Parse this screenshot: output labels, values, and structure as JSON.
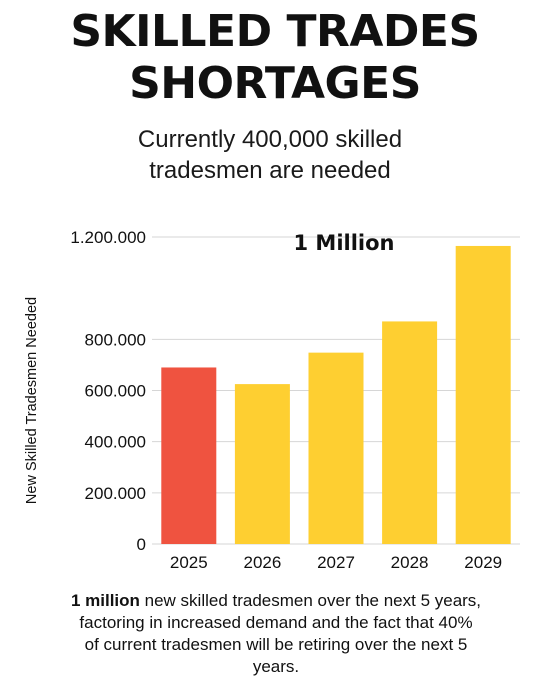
{
  "header": {
    "title_line1": "SKILLED TRADES",
    "title_line2": "SHORTAGES",
    "subtitle_line1": "Currently 400,000 skilled",
    "subtitle_line2": "tradesmen are needed"
  },
  "caption": {
    "bold": "1 million",
    "rest_line1": " new skilled tradesmen over the next 5 years,",
    "line2": "factoring in increased demand and the fact that 40%",
    "line3": "of current tradesmen will be retiring over the next 5",
    "line4": "years."
  },
  "chart_data": {
    "type": "bar",
    "categories": [
      "2025",
      "2026",
      "2027",
      "2028",
      "2029"
    ],
    "values": [
      690000,
      625000,
      748000,
      870000,
      1165000
    ],
    "bar_colors": [
      "#ef5340",
      "#fecf31",
      "#fecf31",
      "#fecf31",
      "#fecf31"
    ],
    "ylabel": "New Skilled Tradesmen Needed",
    "xlabel": "",
    "ylim": [
      0,
      1200000
    ],
    "yticks": [
      0,
      200000,
      400000,
      600000,
      800000,
      1200000
    ],
    "ytick_labels": [
      "0",
      "200.000",
      "400.000",
      "600.000",
      "800.000",
      "1.200.000"
    ],
    "annotation": "1 Million",
    "grid": true,
    "legend": "none"
  }
}
